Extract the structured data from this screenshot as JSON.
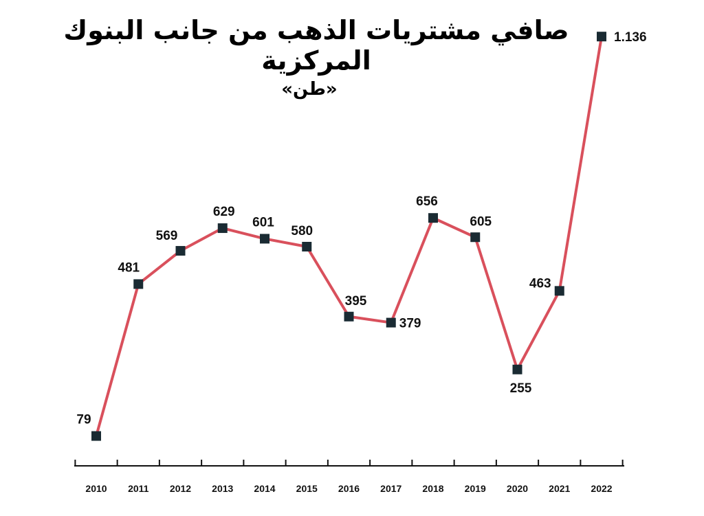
{
  "chart_data": {
    "type": "line",
    "title": "صافي مشتريات الذهب من جانب البنوك المركزية",
    "subtitle": "«طن»",
    "categories": [
      "2010",
      "2011",
      "2012",
      "2013",
      "2014",
      "2015",
      "2016",
      "2017",
      "2018",
      "2019",
      "2020",
      "2021",
      "2022"
    ],
    "values": [
      79,
      481,
      569,
      629,
      601,
      580,
      395,
      379,
      656,
      605,
      255,
      463,
      1136
    ],
    "value_labels": [
      "79",
      "481",
      "569",
      "629",
      "601",
      "580",
      "395",
      "379",
      "656",
      "605",
      "255",
      "463",
      "1.136"
    ],
    "ylim": [
      0,
      1150
    ],
    "grid": false,
    "colors": {
      "line": "#d9505c",
      "marker": "#1a2b33",
      "axis": "#111111"
    }
  }
}
